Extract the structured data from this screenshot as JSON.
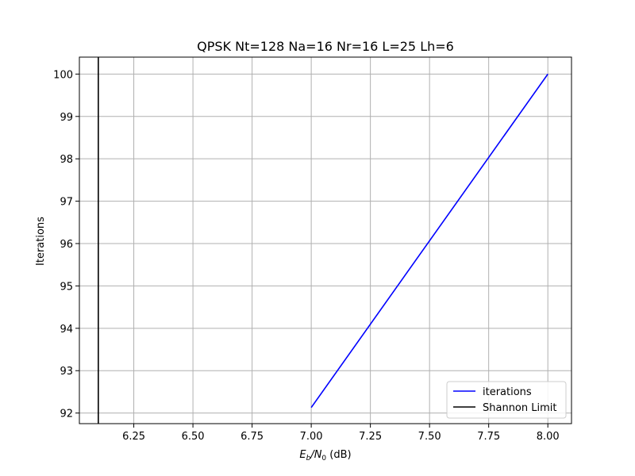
{
  "chart_data": {
    "type": "line",
    "title": "QPSK Nt=128 Na=16 Nr=16 L=25 Lh=6",
    "xlabel_main": "E",
    "xlabel_sub1": "b",
    "xlabel_mid": "/N",
    "xlabel_sub2": "0",
    "xlabel_unit": " (dB)",
    "ylabel": "Iterations",
    "xlim": [
      6.02,
      8.1
    ],
    "ylim": [
      91.75,
      100.4
    ],
    "xticks": [
      6.25,
      6.5,
      6.75,
      7.0,
      7.25,
      7.5,
      7.75,
      8.0
    ],
    "xtick_labels": [
      "6.25",
      "6.50",
      "6.75",
      "7.00",
      "7.25",
      "7.50",
      "7.75",
      "8.00"
    ],
    "yticks": [
      92,
      93,
      94,
      95,
      96,
      97,
      98,
      99,
      100
    ],
    "ytick_labels": [
      "92",
      "93",
      "94",
      "95",
      "96",
      "97",
      "98",
      "99",
      "100"
    ],
    "grid": true,
    "legend_position": "lower-right",
    "series": [
      {
        "name": "iterations",
        "color": "#0000ff",
        "x": [
          7.0,
          8.0
        ],
        "y": [
          92.13,
          100.0
        ]
      },
      {
        "name": "Shannon Limit",
        "color": "#000000",
        "kind": "vertical",
        "x": [
          6.1,
          6.1
        ],
        "y": [
          91.75,
          100.4
        ]
      }
    ]
  }
}
